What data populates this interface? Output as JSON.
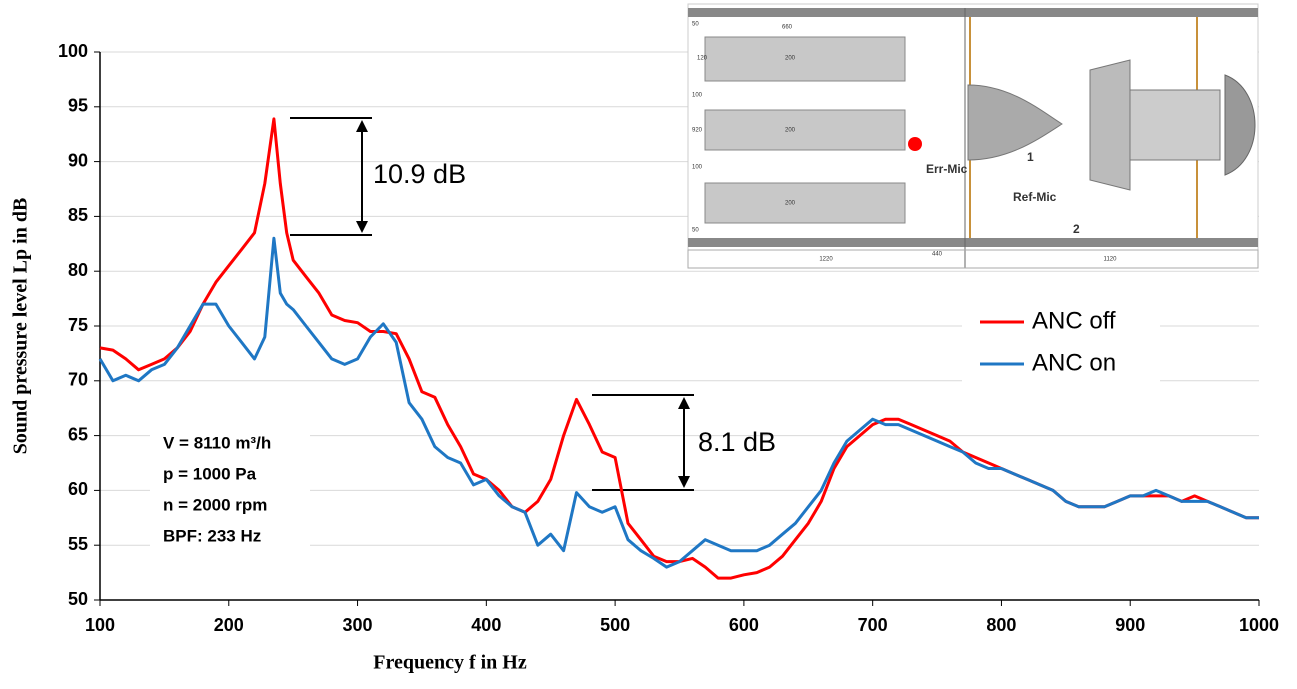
{
  "chart_data": {
    "type": "line",
    "x_label": "Frequency f in Hz",
    "y_label": "Sound pressure level Lp in dB",
    "x": [
      100,
      110,
      120,
      130,
      140,
      150,
      160,
      170,
      180,
      190,
      200,
      210,
      220,
      228,
      235,
      240,
      245,
      250,
      260,
      270,
      280,
      290,
      300,
      310,
      320,
      330,
      340,
      350,
      360,
      370,
      380,
      390,
      400,
      410,
      420,
      430,
      440,
      450,
      460,
      470,
      480,
      490,
      500,
      510,
      520,
      530,
      540,
      550,
      560,
      570,
      580,
      590,
      600,
      610,
      620,
      630,
      640,
      650,
      660,
      670,
      680,
      690,
      700,
      710,
      720,
      730,
      740,
      750,
      760,
      770,
      780,
      790,
      800,
      810,
      820,
      830,
      840,
      850,
      860,
      870,
      880,
      890,
      900,
      910,
      920,
      930,
      940,
      950,
      960,
      970,
      980,
      990,
      1000
    ],
    "series": [
      {
        "name": "ANC off",
        "color": "#ff0000",
        "values": [
          73,
          72.8,
          72,
          71,
          71.5,
          72,
          73,
          74.5,
          77,
          79,
          80.5,
          82,
          83.5,
          88,
          93.9,
          88,
          83.5,
          81,
          79.5,
          78,
          76,
          75.5,
          75.3,
          74.5,
          74.5,
          74.3,
          72,
          69,
          68.5,
          66,
          64,
          61.5,
          61,
          60,
          58.5,
          58,
          59,
          61,
          65,
          68.3,
          66,
          63.5,
          63,
          57,
          55.5,
          54,
          53.5,
          53.5,
          53.8,
          53,
          52,
          52,
          52.3,
          52.5,
          53,
          54,
          55.5,
          57,
          59,
          62,
          64,
          65,
          66,
          66.5,
          66.5,
          66,
          65.5,
          65,
          64.5,
          63.5,
          63,
          62.5,
          62,
          61.5,
          61,
          60.5,
          60,
          59,
          58.5,
          58.5,
          58.5,
          59,
          59.5,
          59.5,
          59.5,
          59.5,
          59,
          59.5,
          59,
          58.5,
          58,
          57.5,
          57.5
        ]
      },
      {
        "name": "ANC on",
        "color": "#1f77c4",
        "values": [
          72,
          70,
          70.5,
          70,
          71,
          71.5,
          73,
          75,
          77,
          77,
          75,
          73.5,
          72,
          74,
          83,
          78,
          77,
          76.5,
          75,
          73.5,
          72,
          71.5,
          72,
          74,
          75.2,
          73.5,
          68,
          66.5,
          64,
          63,
          62.5,
          60.5,
          61,
          59.5,
          58.5,
          58,
          55,
          56,
          54.5,
          59.8,
          58.5,
          58,
          58.5,
          55.5,
          54.5,
          53.8,
          53,
          53.5,
          54.5,
          55.5,
          55,
          54.5,
          54.5,
          54.5,
          55,
          56,
          57,
          58.5,
          60,
          62.5,
          64.5,
          65.5,
          66.5,
          66,
          66,
          65.5,
          65,
          64.5,
          64,
          63.5,
          62.5,
          62,
          62,
          61.5,
          61,
          60.5,
          60,
          59,
          58.5,
          58.5,
          58.5,
          59,
          59.5,
          59.5,
          60,
          59.5,
          59,
          59,
          59,
          58.5,
          58,
          57.5,
          57.5
        ]
      }
    ],
    "xlim": [
      100,
      1000
    ],
    "xticks": [
      100,
      200,
      300,
      400,
      500,
      600,
      700,
      800,
      900,
      1000
    ],
    "ylim": [
      50,
      100
    ],
    "yticks": [
      50,
      55,
      60,
      65,
      70,
      75,
      80,
      85,
      90,
      95,
      100
    ],
    "grid": true,
    "legend": "right",
    "annotations": [
      "10.9 dB",
      "8.1 dB"
    ],
    "parameters": [
      "V = 8110 m³/h",
      "p = 1000 Pa",
      "n = 2000 rpm",
      "BPF: 233 Hz"
    ]
  },
  "inset": {
    "labels": [
      "660",
      "120",
      "200",
      "200",
      "200",
      "100",
      "920",
      "100",
      "50",
      "50",
      "Err-Mic",
      "Ref-Mic",
      "1",
      "2",
      "1220",
      "440",
      "1120"
    ]
  }
}
